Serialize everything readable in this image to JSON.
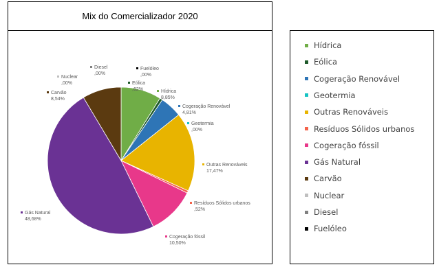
{
  "chart_data": {
    "type": "pie",
    "title": "Mix do Comercializador 2020",
    "legend_position": "right",
    "slices": [
      {
        "name": "Hídrica",
        "value": 8.85,
        "label": "8,85%",
        "color": "#70ad47"
      },
      {
        "name": "Eólica",
        "value": 0.62,
        "label": ",62%",
        "color": "#1e5a2a"
      },
      {
        "name": "Cogeração Renovável",
        "value": 4.81,
        "label": "4,81%",
        "color": "#2e75b6"
      },
      {
        "name": "Geotermia",
        "value": 0.0,
        "label": ",00%",
        "color": "#17c3c3"
      },
      {
        "name": "Outras Renováveis",
        "value": 17.47,
        "label": "17,47%",
        "color": "#e8b400"
      },
      {
        "name": "Resíduos Sólidos urbanos",
        "value": 0.52,
        "label": ",52%",
        "color": "#f4634a"
      },
      {
        "name": "Cogeração fóssil",
        "value": 10.5,
        "label": "10,50%",
        "color": "#e8388a"
      },
      {
        "name": "Gás Natural",
        "value": 48.68,
        "label": "48,68%",
        "color": "#6a3294"
      },
      {
        "name": "Carvão",
        "value": 8.54,
        "label": "8,54%",
        "color": "#5b3a10"
      },
      {
        "name": "Nuclear",
        "value": 0.0,
        "label": ",00%",
        "color": "#bfbfbf"
      },
      {
        "name": "Diesel",
        "value": 0.0,
        "label": ",00%",
        "color": "#808080"
      },
      {
        "name": "Fuelóleo",
        "value": 0.0,
        "label": ",00%",
        "color": "#000000"
      }
    ]
  }
}
